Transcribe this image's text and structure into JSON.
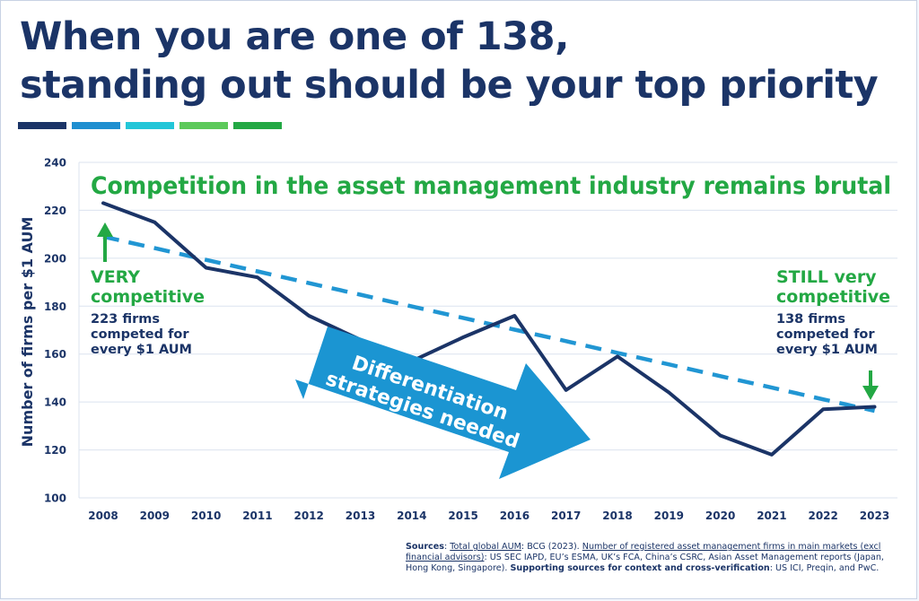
{
  "title": {
    "line1": "When you are one of 138,",
    "line2": "standing out should be your top priority"
  },
  "stripe_colors": [
    "#1b3467",
    "#1f8fd0",
    "#22c6d8",
    "#5cc95a",
    "#23a844"
  ],
  "chart_data": {
    "type": "line",
    "headline": "Competition in the asset management industry remains brutal",
    "ylabel": "Number of firms per $1 AUM",
    "xlabel": "",
    "ylim": [
      100,
      240
    ],
    "yticks": [
      100,
      120,
      140,
      160,
      180,
      200,
      220,
      240
    ],
    "grid": true,
    "categories": [
      "2008",
      "2009",
      "2010",
      "2011",
      "2012",
      "2013",
      "2014",
      "2015",
      "2016",
      "2017",
      "2018",
      "2019",
      "2020",
      "2021",
      "2022",
      "2023"
    ],
    "series": [
      {
        "values": [
          223,
          215,
          196,
          192,
          176,
          166,
          157,
          167,
          176,
          145,
          159,
          144,
          126,
          118,
          137,
          138
        ],
        "color": "#1b3467",
        "style": "solid"
      },
      {
        "values": [
          209,
          204.2,
          199.3,
          194.5,
          189.6,
          184.8,
          179.9,
          175.1,
          170.2,
          165.4,
          160.5,
          155.7,
          150.8,
          146,
          141.1,
          136.3
        ],
        "color": "#2196d3",
        "style": "dashed"
      }
    ],
    "annotations": {
      "left": {
        "heading_line1": "VERY",
        "heading_line2": "competitive",
        "detail_line1": "223 firms",
        "detail_line2": "competed for",
        "detail_line3": "every $1 AUM"
      },
      "right": {
        "heading_line1": "STILL very",
        "heading_line2": "competitive",
        "detail_line1": "138 firms",
        "detail_line2": "competed for",
        "detail_line3": "every $1 AUM"
      },
      "arrow": {
        "line1": "Differentiation",
        "line2": "strategies needed"
      }
    },
    "colors": {
      "headline": "#23a844",
      "annotation_heading": "#23a844",
      "annotation_detail": "#1b3467",
      "arrow_fill": "#1b95d2",
      "grid": "#dbe3ef",
      "axis_text": "#1b3467"
    }
  },
  "sources": {
    "label": "Sources",
    "sep": ": ",
    "link1": "Total global AUM",
    "text1": ": BCG (2023). ",
    "link2": "Number of registered asset management firms in main markets (excl financial advisors)",
    "text2": ": US SEC IAPD, EU’s ESMA, UK’s FCA, China’s CSRC, Asian Asset Management reports (Japan, Hong Kong, Singapore). ",
    "bold2": "Supporting sources for context and cross-verification",
    "text3": ": US ICI, Preqin, and PwC."
  }
}
